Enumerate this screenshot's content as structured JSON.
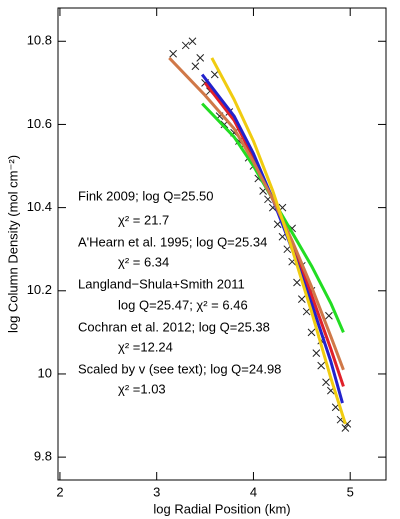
{
  "chart_data": {
    "type": "scatter-lines",
    "xlabel": "log Radial Position (km)",
    "ylabel": "log Column Density (mol cm⁻²)",
    "xlim": [
      1.98,
      5.37
    ],
    "xticks": [
      2,
      3,
      4,
      5
    ],
    "ylim": [
      9.745,
      10.88
    ],
    "yticks": [
      9.8,
      10,
      10.2,
      10.4,
      10.6,
      10.8
    ],
    "points": {
      "color": "#222222",
      "x": [
        3.17,
        3.3,
        3.37,
        3.4,
        3.45,
        3.5,
        3.55,
        3.6,
        3.65,
        3.7,
        3.75,
        3.8,
        3.85,
        3.9,
        3.95,
        4.0,
        4.05,
        4.1,
        4.15,
        4.2,
        4.25,
        4.3,
        4.35,
        4.4,
        4.45,
        4.5,
        4.55,
        4.6,
        4.65,
        4.7,
        4.75,
        4.8,
        4.85,
        4.9,
        4.95,
        4.97,
        4.78,
        4.7,
        4.6,
        4.5,
        4.4,
        4.3
      ],
      "values": [
        10.77,
        10.79,
        10.8,
        10.74,
        10.76,
        10.7,
        10.68,
        10.72,
        10.62,
        10.6,
        10.63,
        10.58,
        10.56,
        10.55,
        10.52,
        10.5,
        10.47,
        10.44,
        10.42,
        10.4,
        10.36,
        10.33,
        10.3,
        10.27,
        10.22,
        10.18,
        10.15,
        10.1,
        10.05,
        10.02,
        9.98,
        9.96,
        9.92,
        9.89,
        9.87,
        9.88,
        10.14,
        10.08,
        10.2,
        10.26,
        10.35,
        10.4
      ]
    },
    "series": [
      {
        "color": "#22dd22",
        "x": [
          3.47,
          3.8,
          4.0,
          4.2,
          4.4,
          4.6,
          4.8,
          4.93
        ],
        "values": [
          10.65,
          10.57,
          10.5,
          10.42,
          10.34,
          10.26,
          10.17,
          10.1
        ]
      },
      {
        "color": "#e0202a",
        "x": [
          3.5,
          3.8,
          4.0,
          4.2,
          4.4,
          4.6,
          4.8,
          4.93
        ],
        "values": [
          10.7,
          10.61,
          10.52,
          10.42,
          10.31,
          10.19,
          10.06,
          9.97
        ]
      },
      {
        "color": "#2222cc",
        "x": [
          3.47,
          3.8,
          4.0,
          4.2,
          4.4,
          4.6,
          4.8,
          4.92
        ],
        "values": [
          10.72,
          10.62,
          10.53,
          10.42,
          10.3,
          10.17,
          10.03,
          9.93
        ]
      },
      {
        "color": "#d07848",
        "x": [
          3.13,
          3.5,
          3.8,
          4.0,
          4.2,
          4.4,
          4.6,
          4.8,
          4.93
        ],
        "values": [
          10.76,
          10.67,
          10.59,
          10.51,
          10.42,
          10.32,
          10.21,
          10.09,
          10.01
        ]
      },
      {
        "color": "#f0cc10",
        "x": [
          3.57,
          3.8,
          4.0,
          4.2,
          4.4,
          4.6,
          4.8,
          4.95
        ],
        "values": [
          10.76,
          10.66,
          10.56,
          10.44,
          10.3,
          10.15,
          9.99,
          9.88
        ]
      }
    ],
    "annotations": [
      "Fink 2009; log Q=25.50",
      "χ² = 21.7",
      "A'Hearn et al. 1995; log Q=25.34",
      "χ² = 6.34",
      "Langland−Shula+Smith 2011",
      "log Q=25.47;  χ² = 6.46",
      "Cochran et al. 2012; log Q=25.38",
      "χ² =12.24",
      "Scaled by v (see text); log Q=24.98",
      "χ² =1.03"
    ]
  }
}
